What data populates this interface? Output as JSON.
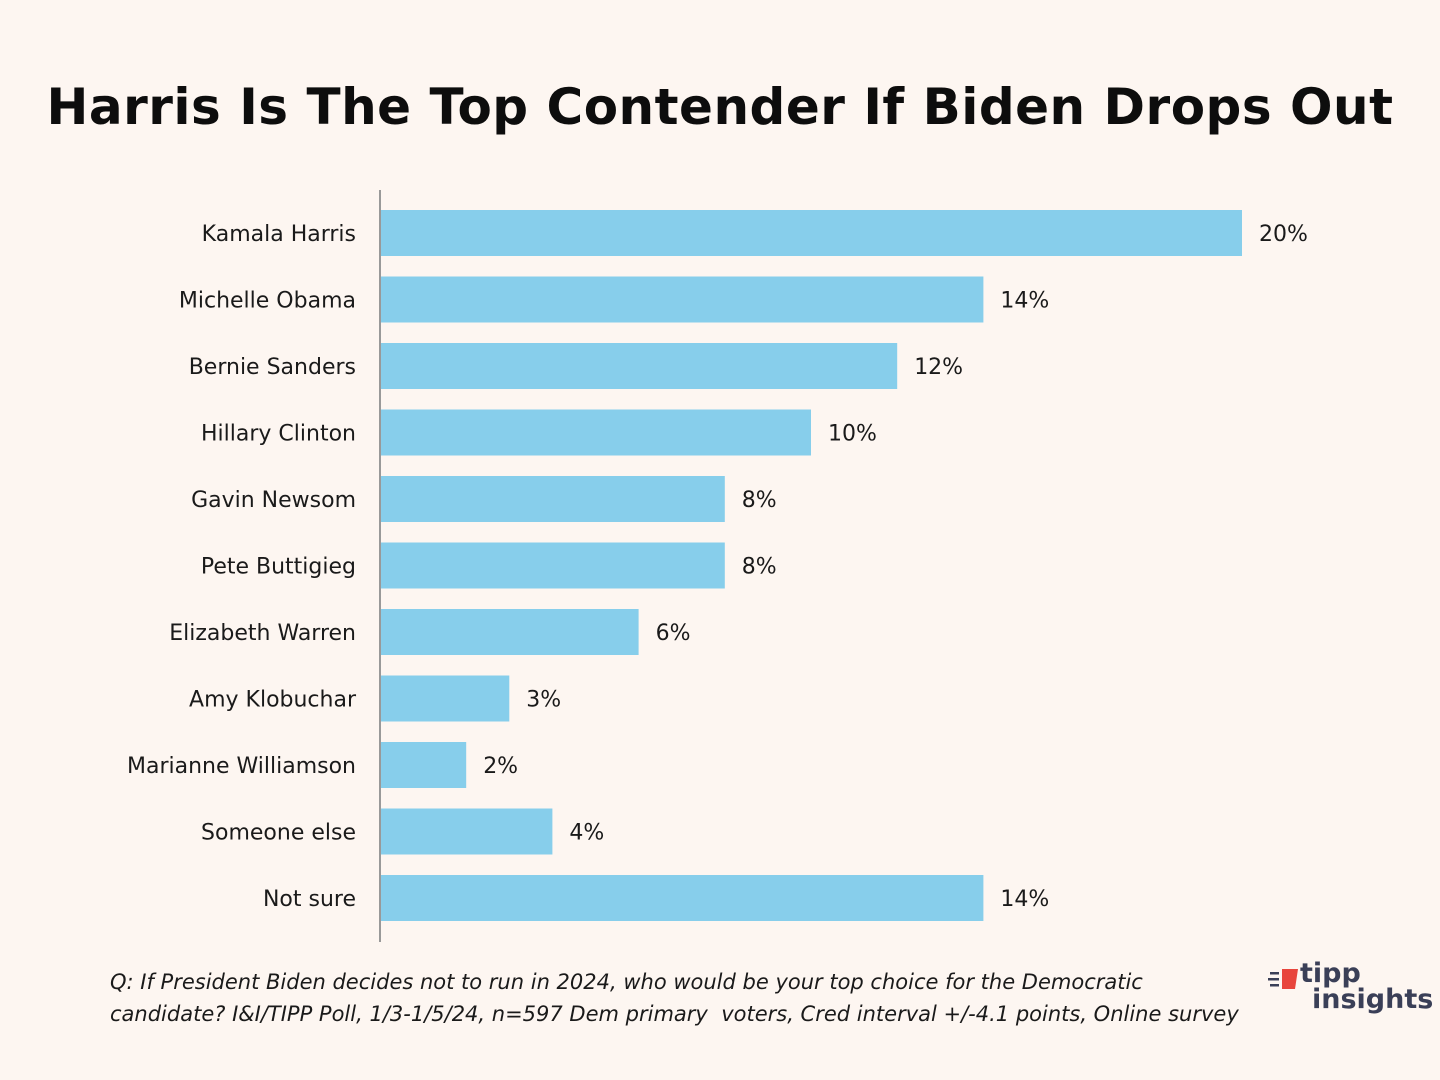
{
  "title": "Harris Is The Top Contender If Biden Drops Out",
  "colors": {
    "background": "#fdf6f1",
    "bar": "#87ceeb",
    "axis": "#999999",
    "logo_accent": "#e8453c",
    "logo_text": "#3a3f57"
  },
  "chart_data": {
    "type": "bar",
    "orientation": "horizontal",
    "title": "Harris Is The Top Contender If Biden Drops Out",
    "xlabel": "",
    "ylabel": "",
    "xlim": [
      0,
      20
    ],
    "grid": false,
    "categories": [
      "Kamala Harris",
      "Michelle Obama",
      "Bernie Sanders",
      "Hillary Clinton",
      "Gavin Newsom",
      "Pete Buttigieg",
      "Elizabeth Warren",
      "Amy Klobuchar",
      "Marianne Williamson",
      "Someone else",
      "Not sure"
    ],
    "values": [
      20,
      14,
      12,
      10,
      8,
      8,
      6,
      3,
      2,
      4,
      14
    ],
    "value_labels": [
      "20%",
      "14%",
      "12%",
      "10%",
      "8%",
      "8%",
      "6%",
      "3%",
      "2%",
      "4%",
      "14%"
    ]
  },
  "footnote": {
    "line1": "Q: If President Biden decides not to run in 2024, who would be your top choice for the Democratic",
    "line2": "candidate? I&I/TIPP Poll, 1/3-1/5/24, n=597 Dem primary  voters, Cred interval +/-4.1 points, Online survey"
  },
  "logo": {
    "word1": "tipp",
    "word2": "insights"
  }
}
